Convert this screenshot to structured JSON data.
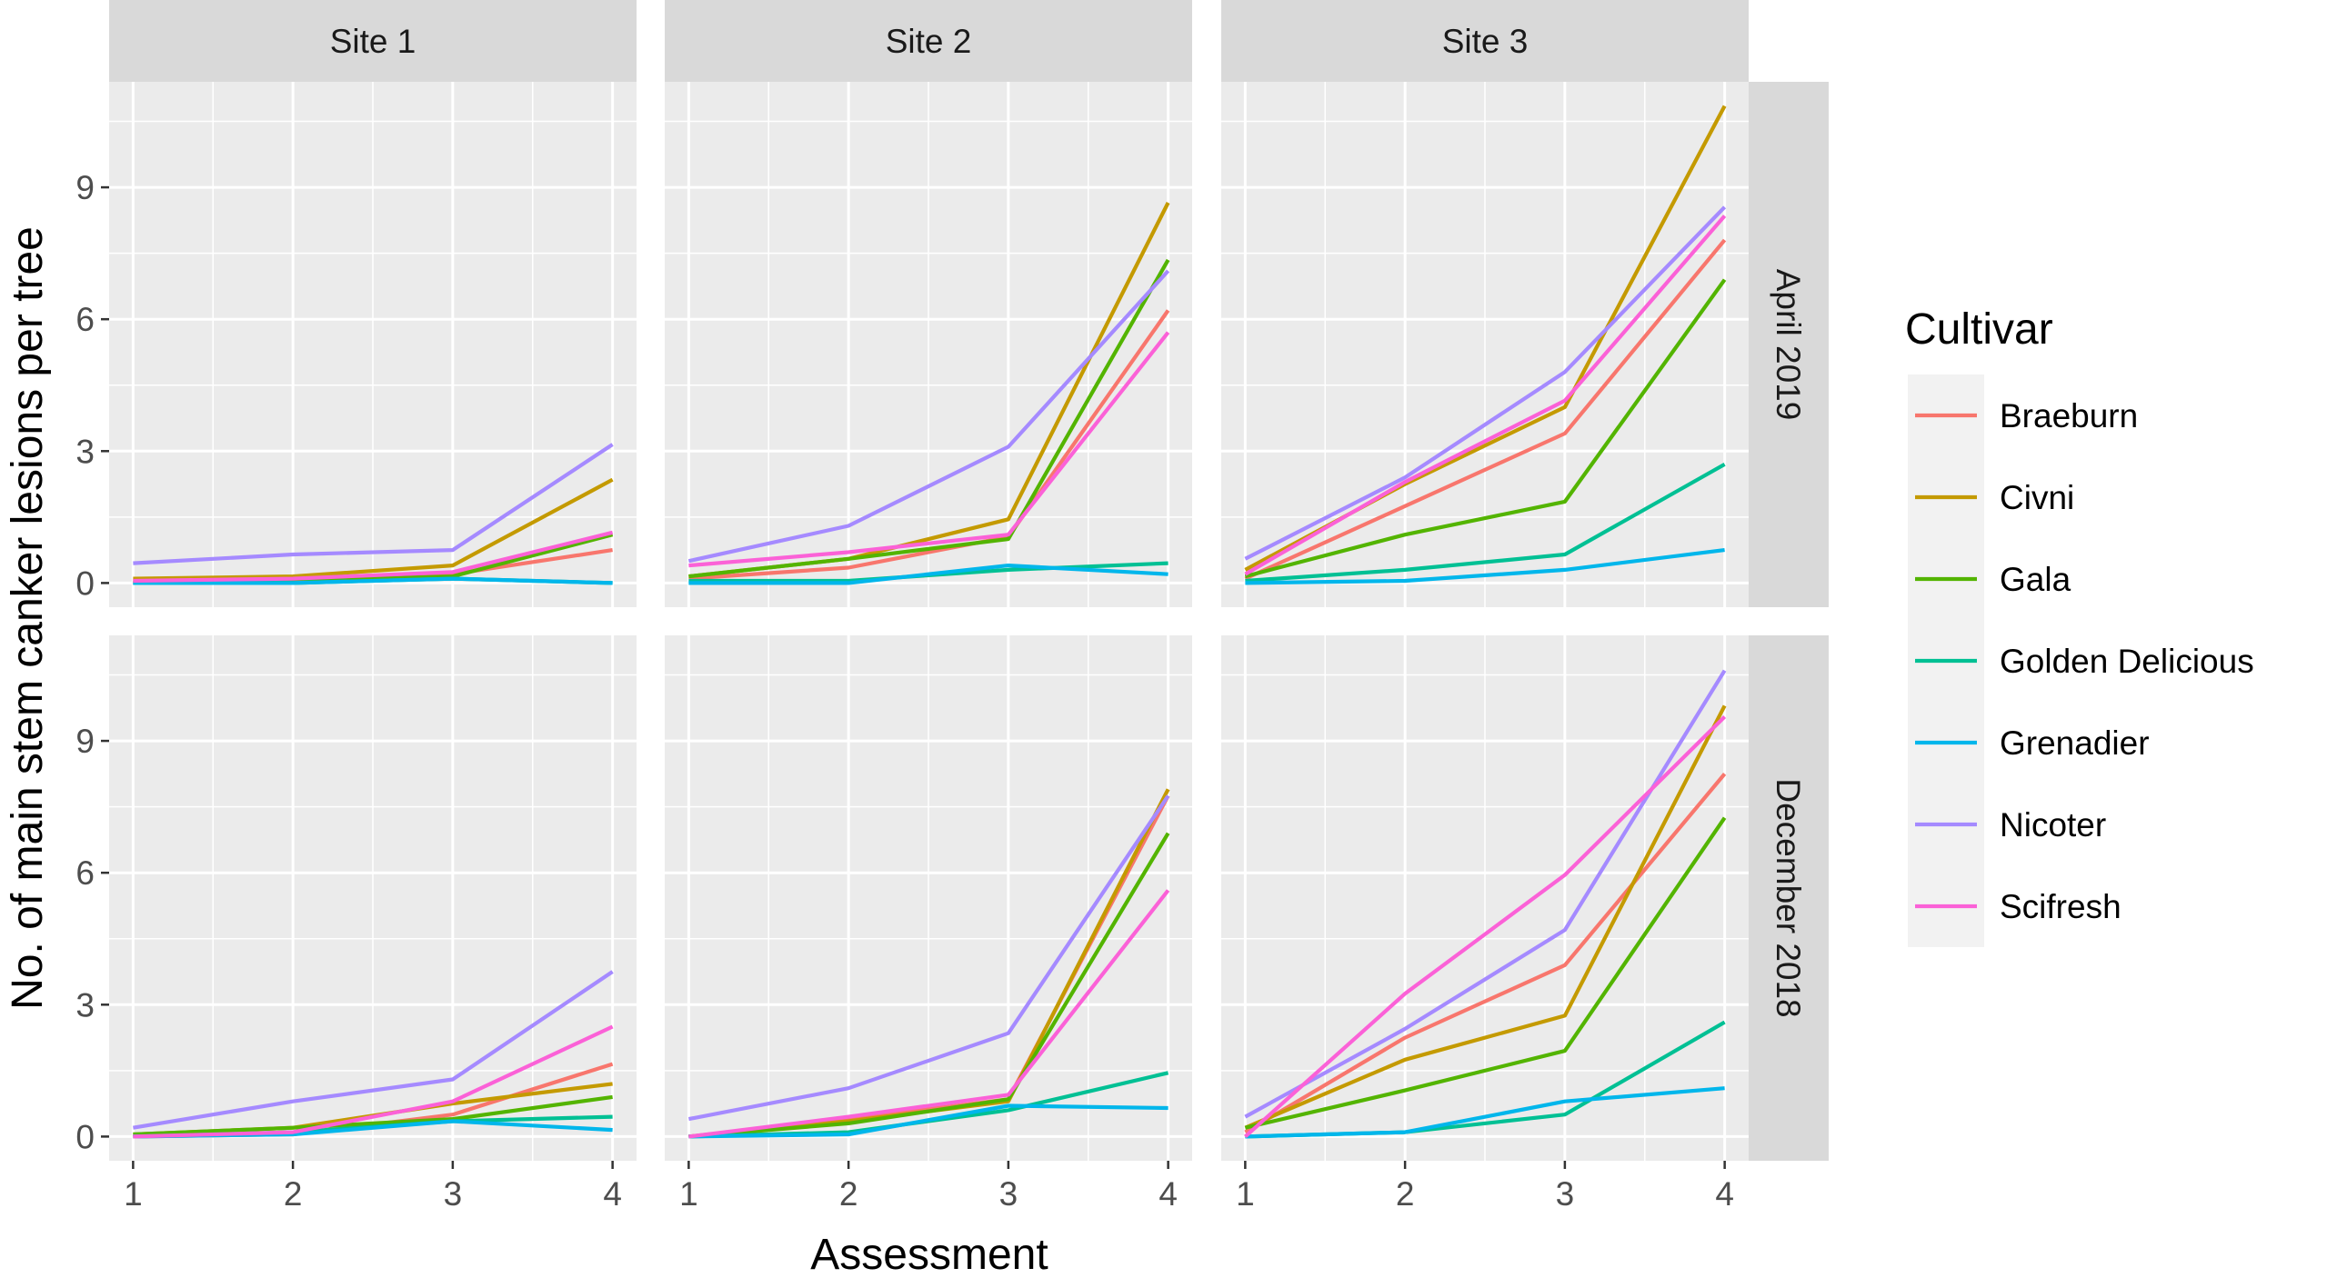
{
  "chart_data": {
    "type": "line",
    "title": "",
    "xlabel": "Assessment",
    "ylabel": "No. of main stem canker lesions per tree",
    "x": [
      1,
      2,
      3,
      4
    ],
    "x_ticks": [
      "1",
      "2",
      "3",
      "4"
    ],
    "y_ticks": [
      0,
      3,
      6,
      9
    ],
    "y_tick_labels": [
      "0",
      "3",
      "6",
      "9"
    ],
    "xlim": [
      0.85,
      4.15
    ],
    "ylim": [
      -0.55,
      11.4
    ],
    "grid": true,
    "legend": {
      "title": "Cultivar",
      "position": "right",
      "entries": [
        "Braeburn",
        "Civni",
        "Gala",
        "Golden Delicious",
        "Grenadier",
        "Nicoter",
        "Scifresh"
      ]
    },
    "series_colors": {
      "Braeburn": "#F8766D",
      "Civni": "#C49A00",
      "Gala": "#53B400",
      "Golden Delicious": "#00C094",
      "Grenadier": "#00B6EB",
      "Nicoter": "#A58AFF",
      "Scifresh": "#FB61D7"
    },
    "columns": [
      "Site 1",
      "Site 2",
      "Site 3"
    ],
    "rows": [
      "April 2019",
      "December 2018"
    ],
    "panels": [
      {
        "column": "Site 1",
        "row": "April 2019",
        "series": [
          {
            "name": "Braeburn",
            "values": [
              0.05,
              0.1,
              0.2,
              0.75
            ]
          },
          {
            "name": "Civni",
            "values": [
              0.1,
              0.15,
              0.4,
              2.35
            ]
          },
          {
            "name": "Gala",
            "values": [
              0.0,
              0.05,
              0.15,
              1.1
            ]
          },
          {
            "name": "Golden Delicious",
            "values": [
              0.0,
              0.0,
              0.1,
              0.0
            ]
          },
          {
            "name": "Grenadier",
            "values": [
              0.0,
              0.0,
              0.1,
              0.0
            ]
          },
          {
            "name": "Nicoter",
            "values": [
              0.45,
              0.65,
              0.75,
              3.15
            ]
          },
          {
            "name": "Scifresh",
            "values": [
              0.05,
              0.1,
              0.25,
              1.15
            ]
          }
        ]
      },
      {
        "column": "Site 2",
        "row": "April 2019",
        "series": [
          {
            "name": "Braeburn",
            "values": [
              0.1,
              0.35,
              1.05,
              6.2
            ]
          },
          {
            "name": "Civni",
            "values": [
              0.15,
              0.55,
              1.45,
              8.65
            ]
          },
          {
            "name": "Gala",
            "values": [
              0.15,
              0.55,
              1.0,
              7.35
            ]
          },
          {
            "name": "Golden Delicious",
            "values": [
              0.05,
              0.05,
              0.3,
              0.45
            ]
          },
          {
            "name": "Grenadier",
            "values": [
              0.0,
              0.0,
              0.4,
              0.2
            ]
          },
          {
            "name": "Nicoter",
            "values": [
              0.5,
              1.3,
              3.1,
              7.1
            ]
          },
          {
            "name": "Scifresh",
            "values": [
              0.4,
              0.7,
              1.1,
              5.7
            ]
          }
        ]
      },
      {
        "column": "Site 3",
        "row": "April 2019",
        "series": [
          {
            "name": "Braeburn",
            "values": [
              0.1,
              1.75,
              3.4,
              7.8
            ]
          },
          {
            "name": "Civni",
            "values": [
              0.3,
              2.25,
              4.0,
              10.85
            ]
          },
          {
            "name": "Gala",
            "values": [
              0.15,
              1.1,
              1.85,
              6.9
            ]
          },
          {
            "name": "Golden Delicious",
            "values": [
              0.05,
              0.3,
              0.65,
              2.7
            ]
          },
          {
            "name": "Grenadier",
            "values": [
              0.0,
              0.05,
              0.3,
              0.75
            ]
          },
          {
            "name": "Nicoter",
            "values": [
              0.55,
              2.4,
              4.8,
              8.55
            ]
          },
          {
            "name": "Scifresh",
            "values": [
              0.2,
              2.3,
              4.15,
              8.35
            ]
          }
        ]
      },
      {
        "column": "Site 1",
        "row": "December 2018",
        "series": [
          {
            "name": "Braeburn",
            "values": [
              0.0,
              0.05,
              0.5,
              1.65
            ]
          },
          {
            "name": "Civni",
            "values": [
              0.05,
              0.2,
              0.75,
              1.2
            ]
          },
          {
            "name": "Gala",
            "values": [
              0.05,
              0.2,
              0.4,
              0.9
            ]
          },
          {
            "name": "Golden Delicious",
            "values": [
              0.0,
              0.1,
              0.35,
              0.45
            ]
          },
          {
            "name": "Grenadier",
            "values": [
              0.0,
              0.05,
              0.35,
              0.15
            ]
          },
          {
            "name": "Nicoter",
            "values": [
              0.2,
              0.8,
              1.3,
              3.75
            ]
          },
          {
            "name": "Scifresh",
            "values": [
              0.0,
              0.1,
              0.8,
              2.5
            ]
          }
        ]
      },
      {
        "column": "Site 2",
        "row": "December 2018",
        "series": [
          {
            "name": "Braeburn",
            "values": [
              0.0,
              0.4,
              0.85,
              7.75
            ]
          },
          {
            "name": "Civni",
            "values": [
              0.0,
              0.35,
              0.8,
              7.9
            ]
          },
          {
            "name": "Gala",
            "values": [
              0.0,
              0.3,
              0.85,
              6.9
            ]
          },
          {
            "name": "Golden Delicious",
            "values": [
              0.0,
              0.1,
              0.6,
              1.45
            ]
          },
          {
            "name": "Grenadier",
            "values": [
              0.0,
              0.05,
              0.7,
              0.65
            ]
          },
          {
            "name": "Nicoter",
            "values": [
              0.4,
              1.1,
              2.35,
              7.75
            ]
          },
          {
            "name": "Scifresh",
            "values": [
              0.0,
              0.45,
              0.95,
              5.6
            ]
          }
        ]
      },
      {
        "column": "Site 3",
        "row": "December 2018",
        "series": [
          {
            "name": "Braeburn",
            "values": [
              0.1,
              2.25,
              3.9,
              8.25
            ]
          },
          {
            "name": "Civni",
            "values": [
              0.2,
              1.75,
              2.75,
              9.8
            ]
          },
          {
            "name": "Gala",
            "values": [
              0.2,
              1.05,
              1.95,
              7.25
            ]
          },
          {
            "name": "Golden Delicious",
            "values": [
              0.0,
              0.1,
              0.5,
              2.6
            ]
          },
          {
            "name": "Grenadier",
            "values": [
              0.0,
              0.1,
              0.8,
              1.1
            ]
          },
          {
            "name": "Nicoter",
            "values": [
              0.45,
              2.45,
              4.7,
              10.6
            ]
          },
          {
            "name": "Scifresh",
            "values": [
              0.0,
              3.25,
              5.95,
              9.55
            ]
          }
        ]
      }
    ]
  }
}
